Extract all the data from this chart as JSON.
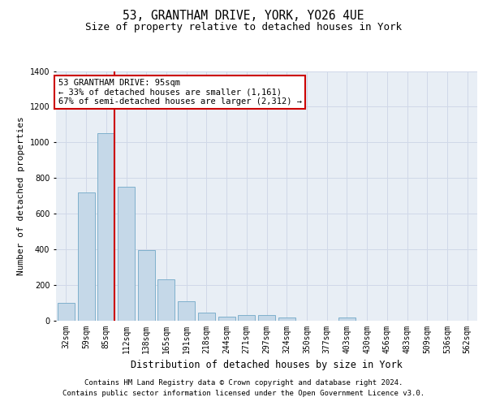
{
  "title": "53, GRANTHAM DRIVE, YORK, YO26 4UE",
  "subtitle": "Size of property relative to detached houses in York",
  "xlabel": "Distribution of detached houses by size in York",
  "ylabel": "Number of detached properties",
  "categories": [
    "32sqm",
    "59sqm",
    "85sqm",
    "112sqm",
    "138sqm",
    "165sqm",
    "191sqm",
    "218sqm",
    "244sqm",
    "271sqm",
    "297sqm",
    "324sqm",
    "350sqm",
    "377sqm",
    "403sqm",
    "430sqm",
    "456sqm",
    "483sqm",
    "509sqm",
    "536sqm",
    "562sqm"
  ],
  "values": [
    100,
    720,
    1050,
    750,
    395,
    230,
    110,
    45,
    25,
    30,
    30,
    20,
    0,
    0,
    20,
    0,
    0,
    0,
    0,
    0,
    0
  ],
  "bar_color": "#c5d8e8",
  "bar_edge_color": "#7fb0cc",
  "grid_color": "#d0d8e8",
  "background_color": "#e8eef5",
  "annotation_line1": "53 GRANTHAM DRIVE: 95sqm",
  "annotation_line2": "← 33% of detached houses are smaller (1,161)",
  "annotation_line3": "67% of semi-detached houses are larger (2,312) →",
  "annotation_box_color": "#ffffff",
  "annotation_box_edge_color": "#cc0000",
  "marker_color": "#cc0000",
  "ylim": [
    0,
    1400
  ],
  "yticks": [
    0,
    200,
    400,
    600,
    800,
    1000,
    1200,
    1400
  ],
  "title_fontsize": 10.5,
  "subtitle_fontsize": 9,
  "ylabel_fontsize": 8,
  "tick_fontsize": 7,
  "annotation_fontsize": 7.5,
  "footer_fontsize": 6.5,
  "xlabel_fontsize": 8.5,
  "footer_line1": "Contains HM Land Registry data © Crown copyright and database right 2024.",
  "footer_line2": "Contains public sector information licensed under the Open Government Licence v3.0."
}
